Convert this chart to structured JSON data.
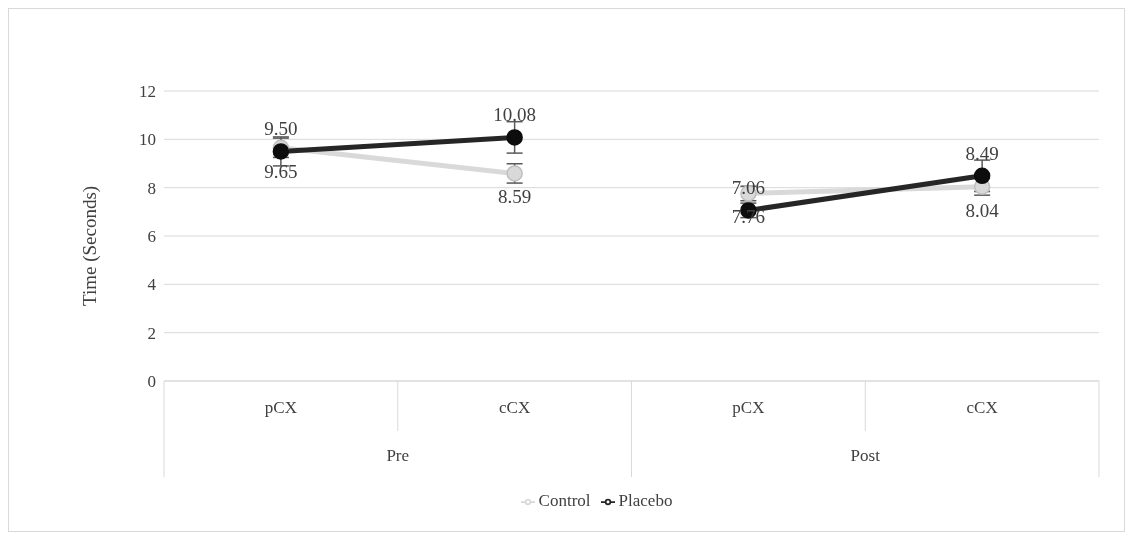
{
  "chart_data": {
    "type": "line",
    "ylabel": "Time (Seconds)",
    "categories": [
      "pCX",
      "cCX",
      "pCX",
      "cCX"
    ],
    "annotations": [
      "Pre",
      "Post"
    ],
    "series": [
      {
        "name": "Control",
        "color": "#d9d9d9",
        "values": [
          9.65,
          8.59,
          7.76,
          8.04
        ],
        "errors": [
          0.4,
          0.4,
          0.3,
          0.35
        ],
        "value_labels": [
          "9.65",
          "8.59",
          "7.76",
          "8.04"
        ]
      },
      {
        "name": "Placebo",
        "color": "#262626",
        "values": [
          9.5,
          10.08,
          7.06,
          8.49
        ],
        "errors": [
          0.6,
          0.65,
          0.3,
          0.65
        ],
        "value_labels": [
          "9.50",
          "10.08",
          "7.06",
          "8.49"
        ]
      }
    ],
    "ylim": [
      0,
      12
    ],
    "yticks": [
      0,
      2,
      4,
      6,
      8,
      10,
      12
    ],
    "grid": "y",
    "legend": "bottom",
    "marker": "circle",
    "line_style": "solid"
  }
}
